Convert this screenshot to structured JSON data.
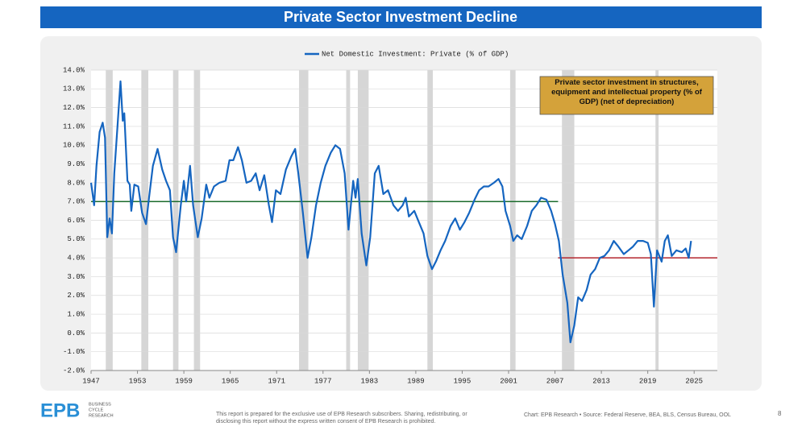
{
  "header": {
    "title": "Private Sector Investment Decline"
  },
  "chart_data": {
    "type": "line",
    "series": [
      {
        "name": "Net Domestic Investment: Private (%  of GDP)",
        "color": "#1565c0",
        "x": [
          1947.0,
          1947.4,
          1947.7,
          1948.1,
          1948.5,
          1948.8,
          1949.1,
          1949.4,
          1949.7,
          1950.0,
          1950.4,
          1950.8,
          1951.1,
          1951.3,
          1951.7,
          1952.0,
          1952.2,
          1952.6,
          1953.1,
          1953.6,
          1954.1,
          1954.5,
          1955.0,
          1955.6,
          1956.2,
          1956.7,
          1957.2,
          1957.6,
          1958.0,
          1958.6,
          1959.0,
          1959.3,
          1959.8,
          1960.2,
          1960.8,
          1961.3,
          1961.9,
          1962.3,
          1962.9,
          1963.6,
          1964.4,
          1964.9,
          1965.4,
          1966.0,
          1966.5,
          1967.1,
          1967.7,
          1968.3,
          1968.8,
          1969.4,
          1970.0,
          1970.4,
          1970.9,
          1971.5,
          1972.2,
          1972.9,
          1973.4,
          1973.8,
          1974.4,
          1975.0,
          1975.5,
          1976.1,
          1976.7,
          1977.3,
          1978.0,
          1978.6,
          1979.2,
          1979.8,
          1980.3,
          1980.9,
          1981.2,
          1981.5,
          1982.0,
          1982.6,
          1983.1,
          1983.7,
          1984.2,
          1984.8,
          1985.4,
          1986.1,
          1986.7,
          1987.3,
          1987.7,
          1988.1,
          1988.8,
          1989.4,
          1990.0,
          1990.5,
          1991.1,
          1991.6,
          1992.2,
          1992.8,
          1993.5,
          1994.1,
          1994.7,
          1995.3,
          1995.9,
          1996.6,
          1997.2,
          1997.8,
          1998.4,
          1999.1,
          1999.7,
          2000.2,
          2000.6,
          2001.2,
          2001.6,
          2002.1,
          2002.7,
          2003.4,
          2004.0,
          2004.6,
          2005.2,
          2005.9,
          2006.5,
          2007.0,
          2007.5,
          2008.0,
          2008.6,
          2009.0,
          2009.5,
          2010.0,
          2010.5,
          2011.1,
          2011.6,
          2012.2,
          2012.8,
          2013.4,
          2014.0,
          2014.6,
          2015.2,
          2015.9,
          2016.5,
          2017.1,
          2017.7,
          2018.4,
          2019.0,
          2019.4,
          2019.8,
          2020.2,
          2020.8,
          2021.2,
          2021.6,
          2022.1,
          2022.7,
          2023.4,
          2023.9,
          2024.3,
          2024.6
        ],
        "values": [
          8.0,
          6.8,
          8.9,
          10.7,
          11.2,
          10.4,
          5.1,
          6.1,
          5.3,
          8.5,
          10.9,
          13.4,
          11.3,
          11.7,
          8.1,
          7.9,
          6.5,
          7.9,
          7.8,
          6.4,
          5.8,
          7.2,
          8.9,
          9.8,
          8.7,
          8.1,
          7.6,
          5.1,
          4.3,
          6.8,
          8.1,
          7.0,
          8.9,
          6.8,
          5.1,
          6.1,
          7.9,
          7.2,
          7.8,
          8.0,
          8.1,
          9.2,
          9.2,
          9.9,
          9.2,
          8.0,
          8.1,
          8.5,
          7.6,
          8.4,
          6.8,
          5.9,
          7.6,
          7.4,
          8.7,
          9.4,
          9.8,
          8.5,
          6.4,
          4.0,
          5.1,
          6.8,
          8.0,
          8.9,
          9.6,
          10.0,
          9.8,
          8.5,
          5.5,
          8.1,
          7.2,
          8.2,
          5.3,
          3.6,
          5.1,
          8.5,
          8.9,
          7.4,
          7.6,
          6.8,
          6.5,
          6.8,
          7.2,
          6.2,
          6.5,
          5.9,
          5.3,
          4.1,
          3.4,
          3.8,
          4.4,
          4.9,
          5.7,
          6.1,
          5.5,
          5.9,
          6.4,
          7.1,
          7.6,
          7.8,
          7.8,
          8.0,
          8.2,
          7.8,
          6.5,
          5.7,
          4.9,
          5.2,
          5.0,
          5.7,
          6.5,
          6.8,
          7.2,
          7.1,
          6.5,
          5.8,
          4.9,
          3.1,
          1.6,
          -0.5,
          0.4,
          1.9,
          1.7,
          2.3,
          3.1,
          3.4,
          4.0,
          4.1,
          4.4,
          4.9,
          4.6,
          4.2,
          4.4,
          4.6,
          4.9,
          4.9,
          4.8,
          4.2,
          1.4,
          4.4,
          3.8,
          4.9,
          5.2,
          4.1,
          4.4,
          4.3,
          4.5,
          4.0,
          4.9
        ]
      }
    ],
    "shaded_periods": [
      [
        1948.9,
        1949.8
      ],
      [
        1953.5,
        1954.4
      ],
      [
        1957.6,
        1958.3
      ],
      [
        1960.3,
        1961.1
      ],
      [
        1973.9,
        1975.1
      ],
      [
        1980.0,
        1980.5
      ],
      [
        1981.5,
        1982.9
      ],
      [
        1990.5,
        1991.2
      ],
      [
        2001.2,
        2001.9
      ],
      [
        2007.9,
        2009.5
      ],
      [
        2020.0,
        2020.4
      ]
    ],
    "reference_lines": [
      {
        "y": 7,
        "x": [
          1947,
          2007.4
        ],
        "color": "#1b6b2c"
      },
      {
        "y": 4,
        "x": [
          2007.4,
          2028
        ],
        "color": "#b3262e"
      }
    ],
    "annotation": "Private sector investment in structures, equipment and intellectual property (% of GDP) (net of depreciation)",
    "xlim": [
      1947,
      2028
    ],
    "xticks": [
      1947,
      1953,
      1959,
      1965,
      1971,
      1977,
      1983,
      1989,
      1995,
      2001,
      2007,
      2013,
      2019,
      2025
    ],
    "ylim": [
      -2,
      14
    ],
    "yticks": [
      {
        "value": -2,
        "label": "-2.0%"
      },
      {
        "value": -1,
        "label": "-1.0%"
      },
      {
        "value": 0,
        "label": "0.0%"
      },
      {
        "value": 1,
        "label": "1.0%"
      },
      {
        "value": 2,
        "label": "2.0%"
      },
      {
        "value": 3,
        "label": "3.0%"
      },
      {
        "value": 4,
        "label": "4.0%"
      },
      {
        "value": 5,
        "label": "5.0%"
      },
      {
        "value": 6,
        "label": "6.0%"
      },
      {
        "value": 7,
        "label": "7.0%"
      },
      {
        "value": 8,
        "label": "8.0%"
      },
      {
        "value": 9,
        "label": "9.0%"
      },
      {
        "value": 10,
        "label": "10.0%"
      },
      {
        "value": 11,
        "label": "11.0%"
      },
      {
        "value": 12,
        "label": "12.0%"
      },
      {
        "value": 13,
        "label": "13.0%"
      },
      {
        "value": 14,
        "label": "14.0%"
      }
    ],
    "grid": true
  },
  "footer": {
    "logo": "EPB",
    "logo_lines": [
      "BUSINESS",
      "CYCLE",
      "RESEARCH"
    ],
    "disclaimer": [
      "This report is prepared for the exclusive use of EPB Research subscribers. Sharing, redistributing, or",
      "disclosing this report without the express written consent of EPB Research is prohibited."
    ],
    "source": "Chart: EPB Research  •  Source: Federal Reserve, BEA, BLS, Census Bureau, OOL",
    "page": "8"
  }
}
